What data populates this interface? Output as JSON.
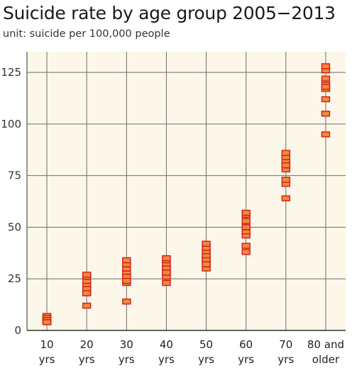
{
  "colors": {
    "plot_bg": "#fdf7e9",
    "grid": "#6d6d6d",
    "marker_fill": "#ef8a3a",
    "marker_stroke": "#d21c1c"
  },
  "chart_data": {
    "type": "scatter",
    "title": "Suicide rate by age group 2005−2013",
    "subtitle": "unit: suicide per 100,000 people",
    "xlabel": "",
    "ylabel": "",
    "ylim": [
      0,
      135
    ],
    "yticks": [
      0,
      25,
      50,
      75,
      100,
      125
    ],
    "grid": true,
    "categories": [
      [
        "10",
        "yrs"
      ],
      [
        "20",
        "yrs"
      ],
      [
        "30",
        "yrs"
      ],
      [
        "40",
        "yrs"
      ],
      [
        "50",
        "yrs"
      ],
      [
        "60",
        "yrs"
      ],
      [
        "70",
        "yrs"
      ],
      [
        "80 and",
        "older"
      ]
    ],
    "values": [
      [
        4,
        5,
        6,
        7,
        4,
        5,
        6,
        5,
        4
      ],
      [
        12,
        18,
        20,
        22,
        24,
        26,
        27,
        20,
        18
      ],
      [
        14,
        23,
        25,
        28,
        30,
        32,
        34,
        26,
        24
      ],
      [
        23,
        26,
        28,
        30,
        32,
        34,
        35,
        30,
        28
      ],
      [
        30,
        33,
        35,
        38,
        40,
        42,
        36,
        34,
        32
      ],
      [
        38,
        41,
        46,
        48,
        50,
        53,
        56,
        57,
        50
      ],
      [
        64,
        71,
        73,
        78,
        80,
        82,
        84,
        86,
        80
      ],
      [
        95,
        105,
        112,
        117,
        119,
        122,
        126,
        128,
        118
      ]
    ]
  }
}
